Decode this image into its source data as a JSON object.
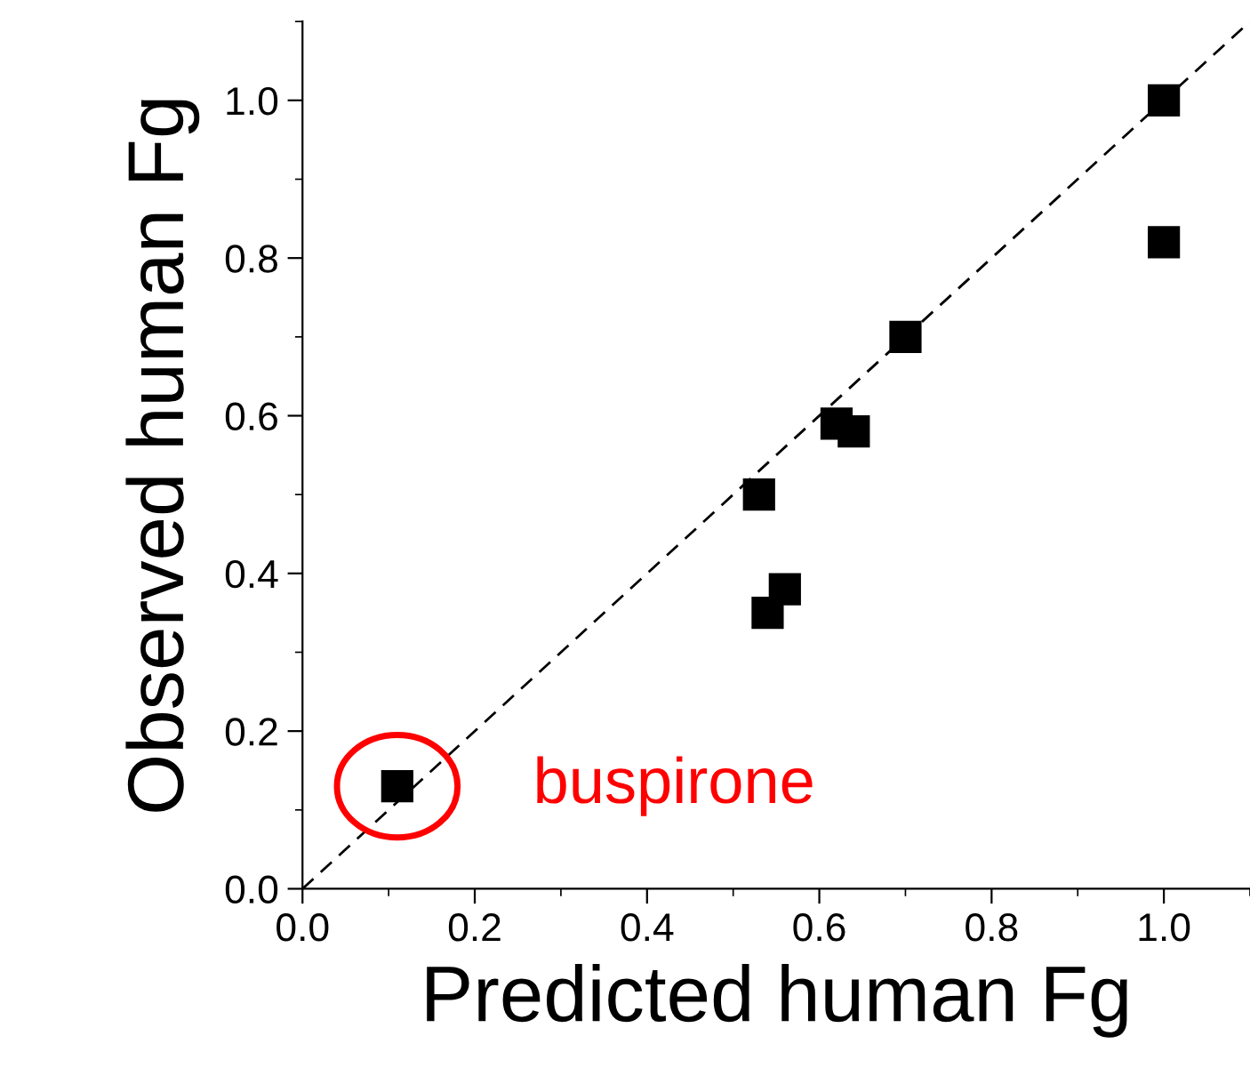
{
  "chart_data": {
    "type": "scatter",
    "xlabel": "Predicted human Fg",
    "ylabel": "Observed human Fg",
    "series": [
      {
        "color": "#000000",
        "marker": "square",
        "x": [
          1.0,
          1.0,
          0.7,
          0.62,
          0.64,
          0.53,
          0.56,
          0.54,
          0.11
        ],
        "values": [
          1.0,
          0.82,
          0.7,
          0.59,
          0.58,
          0.5,
          0.38,
          0.35,
          0.13
        ]
      },
      {
        "type": "line",
        "color": "#000000",
        "line_style": "dashed",
        "marker": "none",
        "x": [
          0.0,
          1.1
        ],
        "values": [
          0.0,
          1.1
        ]
      }
    ],
    "annotations": [
      {
        "text": "buspirone",
        "x": 0.11,
        "y": 0.13
      }
    ],
    "xlim": [
      0.0,
      1.1
    ],
    "ylim": [
      0.0,
      1.1
    ],
    "xticks": [
      {
        "value": 0,
        "label": "0.0"
      },
      0.2,
      0.4,
      0.6,
      0.8,
      {
        "value": 1,
        "label": "1.0"
      }
    ],
    "yticks": [
      {
        "value": 0,
        "label": "0.0"
      },
      0.2,
      0.4,
      0.6,
      0.8,
      {
        "value": 1,
        "label": "1.0"
      }
    ],
    "grid": false,
    "legend": false
  }
}
